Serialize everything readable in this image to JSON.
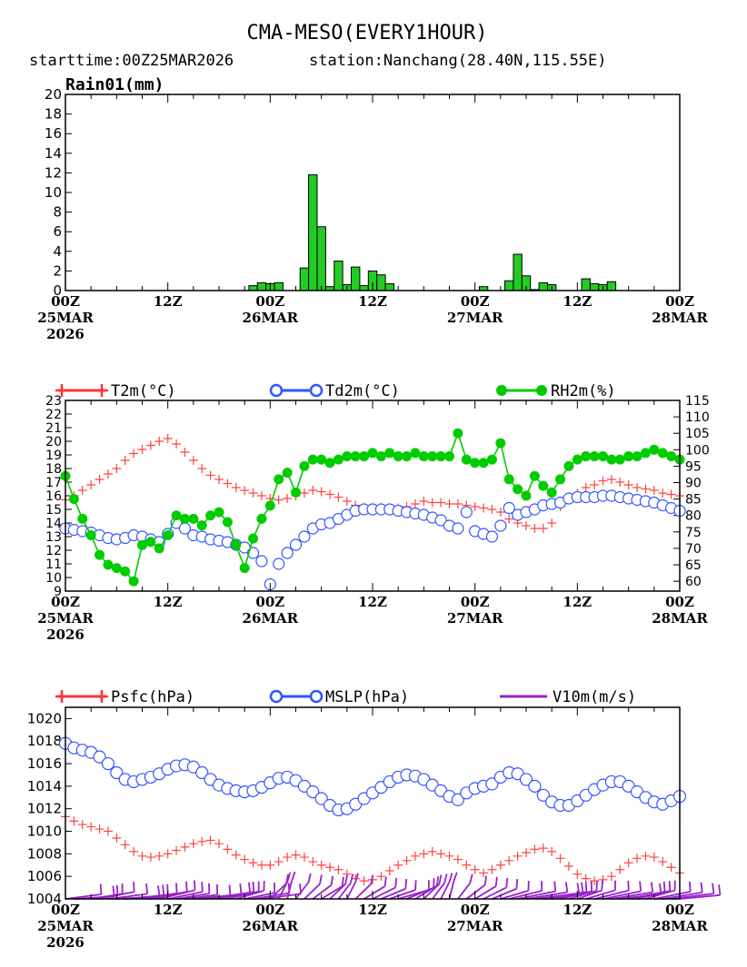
{
  "page": {
    "title": "CMA-MESO(EVERY1HOUR)",
    "subtitle_start": "starttime:00Z25MAR2026",
    "subtitle_station": "station:Nanchang(28.40N,115.55E)"
  },
  "x_axis": {
    "range": [
      0,
      72
    ],
    "ticks": [
      {
        "t": 0,
        "lines": [
          "00Z",
          "25MAR",
          "2026"
        ]
      },
      {
        "t": 12,
        "lines": [
          "12Z"
        ]
      },
      {
        "t": 24,
        "lines": [
          "00Z",
          "26MAR"
        ]
      },
      {
        "t": 36,
        "lines": [
          "12Z"
        ]
      },
      {
        "t": 48,
        "lines": [
          "00Z",
          "27MAR"
        ]
      },
      {
        "t": 60,
        "lines": [
          "12Z"
        ]
      },
      {
        "t": 72,
        "lines": [
          "00Z",
          "28MAR"
        ]
      }
    ]
  },
  "chart_data": [
    {
      "type": "bar",
      "title": "Rain01(mm)",
      "ylim": [
        0,
        20
      ],
      "yticks": [
        0,
        2,
        4,
        6,
        8,
        10,
        12,
        14,
        16,
        18,
        20
      ],
      "color": "#22cc22",
      "series": [
        {
          "name": "Rain01(mm)",
          "x": [
            22,
            23,
            24,
            25,
            28,
            29,
            30,
            31,
            32,
            33,
            34,
            35,
            36,
            37,
            38,
            49,
            52,
            53,
            54,
            55,
            56,
            57,
            61,
            62,
            63,
            64
          ],
          "values": [
            0.5,
            0.8,
            0.7,
            0.8,
            2.3,
            11.8,
            6.5,
            0.4,
            3.0,
            0.6,
            2.4,
            0.5,
            2.0,
            1.6,
            0.7,
            0.4,
            1.0,
            3.7,
            1.5,
            0.1,
            0.8,
            0.6,
            1.2,
            0.7,
            0.6,
            0.9
          ]
        }
      ]
    },
    {
      "type": "line",
      "title": "",
      "ylim_left": [
        9,
        23
      ],
      "yticks_left": [
        9,
        10,
        11,
        12,
        13,
        14,
        15,
        16,
        17,
        18,
        19,
        20,
        21,
        22,
        23
      ],
      "ylim_right": [
        57,
        115
      ],
      "yticks_right": [
        60,
        65,
        70,
        75,
        80,
        85,
        90,
        95,
        100,
        105,
        110,
        115
      ],
      "legend": [
        {
          "label": "T2m(°C)",
          "color": "#ff3333",
          "marker": "plus"
        },
        {
          "label": "Td2m(°C)",
          "color": "#3355ff",
          "marker": "circle"
        },
        {
          "label": "RH2m(%)",
          "color": "#00cc00",
          "marker": "dot"
        }
      ],
      "series": [
        {
          "name": "T2m(°C)",
          "axis": "left",
          "color": "#ff4444",
          "marker": "plus",
          "values": [
            15.7,
            16.0,
            16.4,
            16.8,
            17.2,
            17.6,
            18.0,
            18.6,
            19.1,
            19.4,
            19.7,
            20.0,
            20.2,
            19.8,
            19.2,
            18.6,
            18.0,
            17.5,
            17.2,
            16.9,
            16.6,
            16.4,
            16.2,
            16.0,
            15.8,
            15.7,
            15.8,
            16.0,
            16.2,
            16.4,
            16.3,
            16.1,
            15.9,
            15.6,
            15.3,
            15.1,
            15.0,
            15.0,
            15.1,
            15.1,
            15.2,
            15.4,
            15.6,
            15.5,
            15.5,
            15.4,
            15.4,
            15.3,
            15.2,
            15.1,
            15.0,
            14.8,
            14.3,
            14.0,
            13.8,
            13.6,
            13.6,
            14.0,
            15.2,
            15.8,
            16.2,
            16.6,
            16.8,
            17.1,
            17.2,
            17.0,
            16.8,
            16.6,
            16.5,
            16.4,
            16.2,
            16.1,
            16.0
          ]
        },
        {
          "name": "Td2m(°C)",
          "axis": "left",
          "color": "#3355ff",
          "marker": "circle",
          "values": [
            13.6,
            13.5,
            13.4,
            13.3,
            13.1,
            12.9,
            12.8,
            12.9,
            13.1,
            13.0,
            12.8,
            12.6,
            13.2,
            14.0,
            13.6,
            13.1,
            13.0,
            12.8,
            12.7,
            12.6,
            12.4,
            12.2,
            11.8,
            11.2,
            9.5,
            11.0,
            11.8,
            12.4,
            13.0,
            13.6,
            13.9,
            14.0,
            14.3,
            14.6,
            14.9,
            15.0,
            15.0,
            15.0,
            15.0,
            14.9,
            14.8,
            14.7,
            14.6,
            14.4,
            14.2,
            13.8,
            13.6,
            14.8,
            13.4,
            13.2,
            13.0,
            13.8,
            15.1,
            14.6,
            14.8,
            15.0,
            15.3,
            15.4,
            15.5,
            15.8,
            15.9,
            15.9,
            15.9,
            16.0,
            16.0,
            15.9,
            15.8,
            15.7,
            15.6,
            15.5,
            15.3,
            15.1,
            14.9
          ]
        }
      ]
    },
    {
      "type": "line",
      "title": "",
      "ylim": [
        1004,
        1021
      ],
      "yticks": [
        1004,
        1006,
        1008,
        1010,
        1012,
        1014,
        1016,
        1018,
        1020
      ],
      "legend": [
        {
          "label": "Psfc(hPa)",
          "color": "#ff3333",
          "marker": "plus"
        },
        {
          "label": "MSLP(hPa)",
          "color": "#3355ff",
          "marker": "circle"
        },
        {
          "label": "V10m(m/s)",
          "color": "#9922cc",
          "marker": "barb"
        }
      ],
      "series": [
        {
          "name": "Psfc(hPa)",
          "color": "#ff4444",
          "marker": "plus",
          "values": [
            1011.3,
            1010.9,
            1010.6,
            1010.4,
            1010.2,
            1010.0,
            1009.4,
            1008.8,
            1008.2,
            1007.8,
            1007.7,
            1007.8,
            1008.0,
            1008.3,
            1008.6,
            1008.9,
            1009.1,
            1009.2,
            1008.9,
            1008.4,
            1007.9,
            1007.5,
            1007.2,
            1007.0,
            1007.0,
            1007.3,
            1007.7,
            1007.9,
            1007.7,
            1007.3,
            1007.0,
            1006.8,
            1006.6,
            1006.2,
            1005.8,
            1005.6,
            1005.7,
            1006.0,
            1006.5,
            1007.0,
            1007.4,
            1007.8,
            1008.0,
            1008.2,
            1008.0,
            1007.8,
            1007.5,
            1007.0,
            1006.6,
            1006.3,
            1006.6,
            1007.0,
            1007.4,
            1007.8,
            1008.1,
            1008.4,
            1008.5,
            1008.2,
            1007.6,
            1006.9,
            1006.2,
            1005.8,
            1005.6,
            1005.7,
            1006.0,
            1006.6,
            1007.2,
            1007.6,
            1007.8,
            1007.7,
            1007.3,
            1006.8,
            1006.3
          ]
        },
        {
          "name": "MSLP(hPa)",
          "color": "#3355ff",
          "marker": "circle",
          "values": [
            1017.8,
            1017.4,
            1017.2,
            1017.0,
            1016.6,
            1016.0,
            1015.2,
            1014.6,
            1014.4,
            1014.6,
            1014.8,
            1015.1,
            1015.5,
            1015.8,
            1015.9,
            1015.7,
            1015.2,
            1014.6,
            1014.1,
            1013.8,
            1013.6,
            1013.5,
            1013.6,
            1013.9,
            1014.3,
            1014.7,
            1014.8,
            1014.5,
            1014.0,
            1013.5,
            1012.9,
            1012.3,
            1011.9,
            1012.0,
            1012.4,
            1012.9,
            1013.4,
            1013.9,
            1014.4,
            1014.8,
            1015.0,
            1014.9,
            1014.6,
            1014.1,
            1013.6,
            1013.1,
            1012.8,
            1013.4,
            1013.8,
            1014.0,
            1014.2,
            1014.8,
            1015.2,
            1015.1,
            1014.6,
            1014.0,
            1013.2,
            1012.6,
            1012.3,
            1012.3,
            1012.7,
            1013.2,
            1013.7,
            1014.1,
            1014.4,
            1014.4,
            1014.0,
            1013.5,
            1013.0,
            1012.6,
            1012.4,
            1012.7,
            1013.1
          ]
        }
      ]
    }
  ]
}
